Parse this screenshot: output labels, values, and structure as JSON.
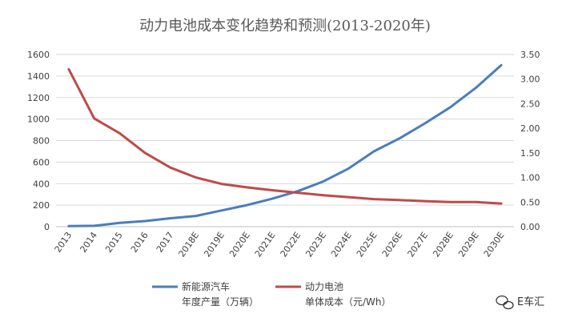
{
  "chart_data": {
    "type": "line",
    "title": "动力电池成本变化趋势和预测(2013-2020年)",
    "categories": [
      "2013",
      "2014",
      "2015",
      "2016",
      "2017",
      "2018E",
      "2019E",
      "2020E",
      "2021E",
      "2022E",
      "2023E",
      "2024E",
      "2025E",
      "2026E",
      "2027E",
      "2028E",
      "2029E",
      "2030E"
    ],
    "y_left": {
      "min": 0,
      "max": 1600,
      "ticks": [
        "0",
        "200",
        "400",
        "600",
        "800",
        "1000",
        "1200",
        "1400",
        "1600"
      ]
    },
    "y_right": {
      "min": 0,
      "max": 3.5,
      "ticks": [
        "0.00",
        "0.50",
        "1.00",
        "1.50",
        "2.00",
        "2.50",
        "3.00",
        "3.50"
      ]
    },
    "series": [
      {
        "name_line1": "新能源汽车",
        "name_line2": "年度产量（万辆）",
        "axis": "left",
        "color": "#4a7ebb",
        "values": [
          5,
          8,
          35,
          52,
          78,
          100,
          150,
          200,
          260,
          330,
          420,
          540,
          700,
          820,
          960,
          1110,
          1290,
          1500
        ]
      },
      {
        "name_line1": "动力电池",
        "name_line2": "单体成本（元/Wh）",
        "axis": "right",
        "color": "#be4b48",
        "values": [
          3.2,
          2.2,
          1.9,
          1.5,
          1.2,
          1.0,
          0.87,
          0.8,
          0.74,
          0.69,
          0.64,
          0.6,
          0.56,
          0.54,
          0.52,
          0.5,
          0.5,
          0.47
        ]
      }
    ],
    "grid": "horizontal",
    "legend": "bottom"
  },
  "watermark": {
    "text": "E车汇",
    "icon": "wechat-icon"
  }
}
